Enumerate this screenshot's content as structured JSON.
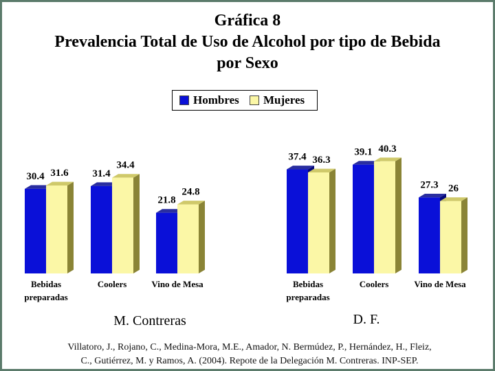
{
  "title_lines": [
    "Gráfica 8",
    "Prevalencia Total de Uso de Alcohol por tipo de Bebida",
    "por Sexo"
  ],
  "legend": [
    {
      "name": "Hombres",
      "color": "#0a10d8"
    },
    {
      "name": "Mujeres",
      "color": "#fbf7a6"
    }
  ],
  "chart_data": [
    {
      "type": "bar",
      "panel_label": "M. Contreras",
      "categories": [
        "Bebidas preparadas",
        "Coolers",
        "Vino de Mesa"
      ],
      "series": [
        {
          "name": "Hombres",
          "values": [
            30.4,
            31.4,
            21.8
          ]
        },
        {
          "name": "Mujeres",
          "values": [
            31.6,
            34.4,
            24.8
          ]
        }
      ],
      "data_labels": [
        [
          "30.4",
          "31.6"
        ],
        [
          "31.4",
          "34.4"
        ],
        [
          "21.8",
          "24.8"
        ]
      ],
      "style": "3d-bar"
    },
    {
      "type": "bar",
      "panel_label": "D. F.",
      "categories": [
        "Bebidas preparadas",
        "Coolers",
        "Vino de Mesa"
      ],
      "series": [
        {
          "name": "Hombres",
          "values": [
            37.4,
            39.1,
            27.3
          ]
        },
        {
          "name": "Mujeres",
          "values": [
            36.3,
            40.3,
            26
          ]
        }
      ],
      "data_labels": [
        [
          "37.4",
          "36.3"
        ],
        [
          "39.1",
          "40.3"
        ],
        [
          "27.3",
          "26"
        ]
      ],
      "style": "3d-bar"
    }
  ],
  "citation_lines": [
    "Villatoro, J., Rojano, C., Medina-Mora, M.E., Amador, N. Bermúdez, P., Hernández, H., Fleiz,",
    "C., Gutiérrez, M. y Ramos, A. (2004). Repote de la Delegación M. Contreras. INP-SEP."
  ],
  "colors": {
    "border": "#5b7b6b",
    "hombres_front": "#0a10d8",
    "hombres_side": "#05087a",
    "hombres_top": "#2a2ea0",
    "mujeres_front": "#fbf7a6",
    "mujeres_side": "#8a8436",
    "mujeres_top": "#cfc96a"
  }
}
